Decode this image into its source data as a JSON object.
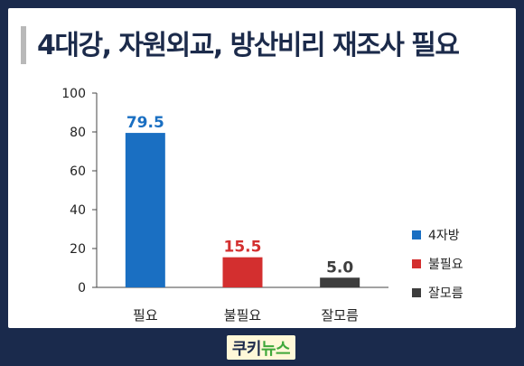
{
  "title": "4대강, 자원외교, 방산비리 재조사 필요",
  "footer": {
    "logo_dark": "쿠키",
    "logo_green": "뉴스"
  },
  "colors": {
    "필요": "#1a6fc2",
    "불필요": "#d32f2f",
    "잘모름": "#3d3d3d"
  },
  "chart_data": {
    "type": "bar",
    "title": "4대강, 자원외교, 방산비리 재조사 필요",
    "categories": [
      "필요",
      "불필요",
      "잘모름"
    ],
    "values": [
      79.5,
      15.5,
      5.0
    ],
    "value_labels": [
      "79.5",
      "15.5",
      "5.0"
    ],
    "ylim": [
      0,
      100
    ],
    "yticks": [
      "0",
      "20",
      "40",
      "60",
      "80",
      "100"
    ],
    "grid": false,
    "legend": {
      "placement": "right",
      "entries": [
        "4자방",
        "불필요",
        "잘모름"
      ],
      "colors": [
        "#1a6fc2",
        "#d32f2f",
        "#3d3d3d"
      ]
    },
    "bar_colors": [
      "#1a6fc2",
      "#d32f2f",
      "#3d3d3d"
    ]
  }
}
